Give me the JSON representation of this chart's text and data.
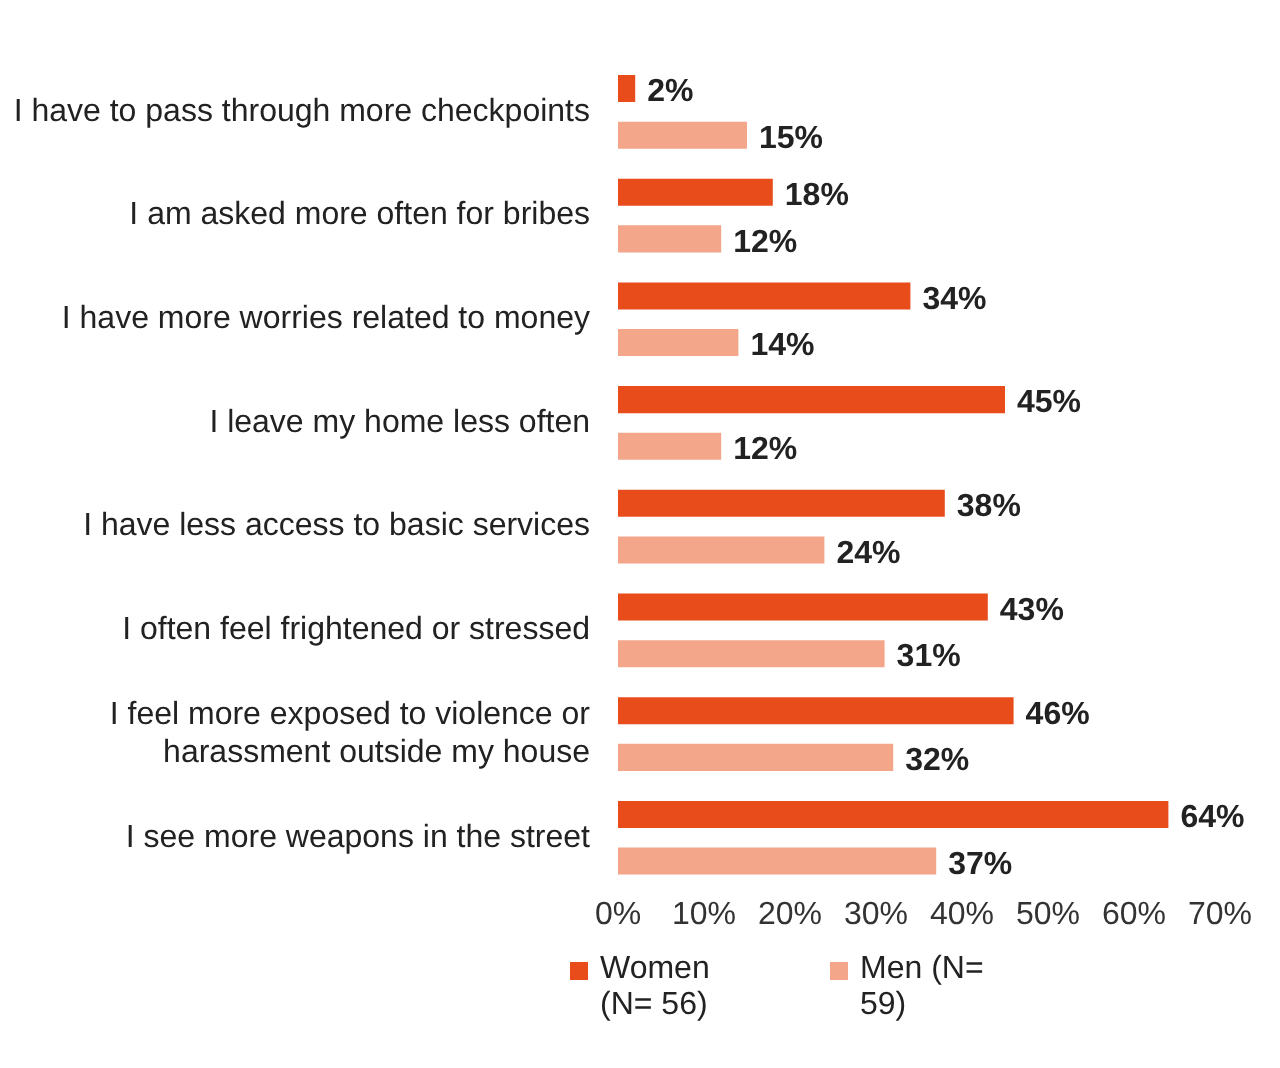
{
  "chart_data": {
    "type": "bar",
    "orientation": "horizontal",
    "legend": "bottom",
    "grid": false,
    "categories": [
      "I have to pass through more checkpoints",
      "I am asked more often for bribes",
      "I have more worries related to money",
      "I leave my home less often",
      "I have less access to basic services",
      "I often feel frightened or stressed",
      "I feel more exposed to violence or harassment outside my house",
      "I see more weapons in the street"
    ],
    "series": [
      {
        "name": "Women (N= 56)",
        "color": "#e84c1b",
        "values": [
          2,
          18,
          34,
          45,
          38,
          43,
          46,
          64
        ],
        "value_labels": [
          "2%",
          "18%",
          "34%",
          "45%",
          "38%",
          "43%",
          "46%",
          "64%"
        ]
      },
      {
        "name": "Men (N= 59)",
        "color": "#f4a68b",
        "values": [
          15,
          12,
          14,
          12,
          24,
          31,
          32,
          37
        ],
        "value_labels": [
          "15%",
          "12%",
          "14%",
          "12%",
          "24%",
          "31%",
          "32%",
          "37%"
        ]
      }
    ],
    "xlim": [
      0,
      70
    ],
    "xticks": [
      {
        "value": 0,
        "label": "0%"
      },
      {
        "value": 10,
        "label": "10%"
      },
      {
        "value": 20,
        "label": "20%"
      },
      {
        "value": 30,
        "label": "30%"
      },
      {
        "value": 40,
        "label": "40%"
      },
      {
        "value": 50,
        "label": "50%"
      },
      {
        "value": 60,
        "label": "60%"
      },
      {
        "value": 70,
        "label": "70%"
      }
    ]
  }
}
